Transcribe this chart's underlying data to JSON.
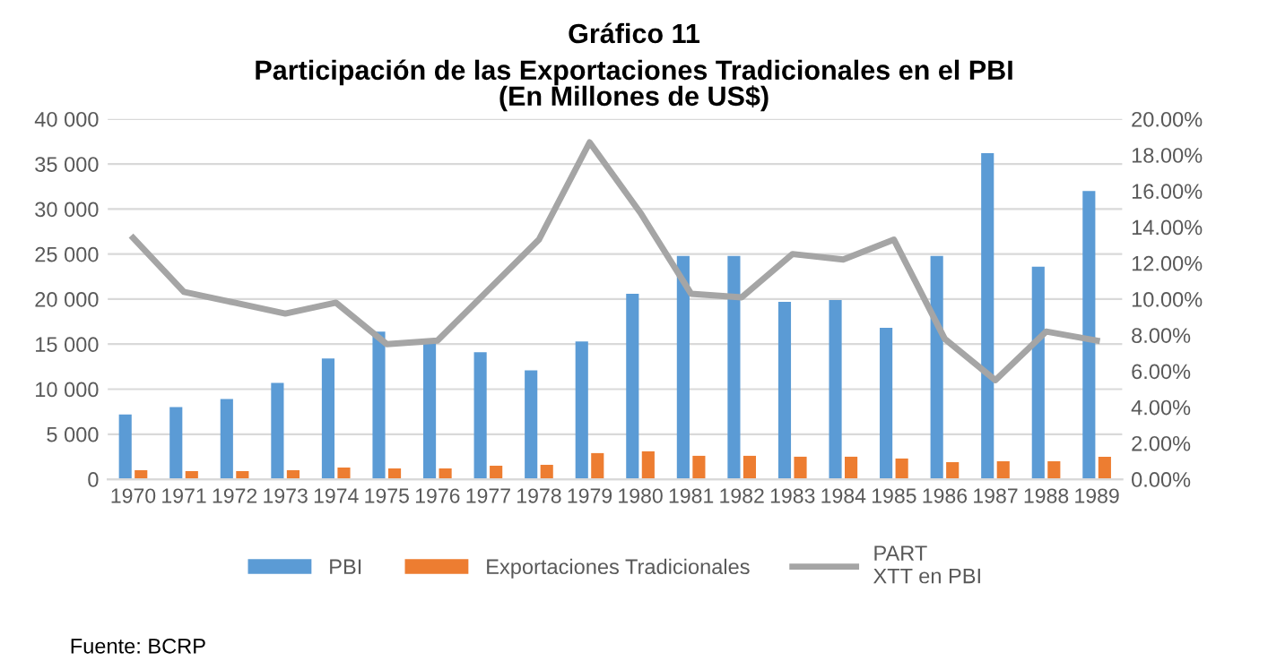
{
  "chart_data": {
    "type": "bar",
    "title": "Gráfico 11",
    "subtitle": "Participación de las Exportaciones Tradicionales en el PBI\n(En Millones de US$)",
    "categories": [
      "1970",
      "1971",
      "1972",
      "1973",
      "1974",
      "1975",
      "1976",
      "1977",
      "1978",
      "1979",
      "1980",
      "1981",
      "1982",
      "1983",
      "1984",
      "1985",
      "1986",
      "1987",
      "1988",
      "1989"
    ],
    "series": [
      {
        "name": "PBI",
        "color": "#5b9bd5",
        "values": [
          7200,
          8000,
          8900,
          10700,
          13400,
          16400,
          15500,
          14100,
          12100,
          15300,
          20600,
          24800,
          24800,
          19700,
          19900,
          16800,
          24800,
          36200,
          23600,
          32000
        ]
      },
      {
        "name": "Exportaciones Tradicionales",
        "color": "#ed7d31",
        "values": [
          1000,
          900,
          900,
          1000,
          1300,
          1200,
          1200,
          1500,
          1600,
          2900,
          3100,
          2600,
          2600,
          2500,
          2500,
          2300,
          1900,
          2000,
          2000,
          2500
        ]
      },
      {
        "name": "PART\nXTT en PBI",
        "type": "line",
        "axis": "y2",
        "color": "#a5a5a5",
        "values": [
          13.4,
          10.4,
          9.8,
          9.2,
          9.8,
          7.5,
          7.7,
          10.5,
          13.3,
          18.7,
          14.8,
          10.3,
          10.1,
          12.5,
          12.2,
          13.3,
          7.8,
          5.5,
          8.2,
          7.7
        ]
      }
    ],
    "ylim": [
      0,
      40000
    ],
    "yticks": [
      0,
      {
        "value": 5000,
        "label": "5 000"
      },
      {
        "value": 10000,
        "label": "10 000"
      },
      {
        "value": 15000,
        "label": "15 000"
      },
      {
        "value": 20000,
        "label": "20 000"
      },
      {
        "value": 25000,
        "label": "25 000"
      },
      {
        "value": 30000,
        "label": "30 000"
      },
      {
        "value": 35000,
        "label": "35 000"
      },
      {
        "value": 40000,
        "label": "40 000"
      }
    ],
    "y2lim": [
      0,
      20
    ],
    "y2ticks": [
      {
        "value": 0,
        "label": "0.00%"
      },
      {
        "value": 2,
        "label": "2.00%"
      },
      {
        "value": 4,
        "label": "4.00%"
      },
      {
        "value": 6,
        "label": "6.00%"
      },
      {
        "value": 8,
        "label": "8.00%"
      },
      {
        "value": 10,
        "label": "10.00%"
      },
      {
        "value": 12,
        "label": "12.00%"
      },
      {
        "value": 14,
        "label": "14.00%"
      },
      {
        "value": 16,
        "label": "16.00%"
      },
      {
        "value": 18,
        "label": "18.00%"
      },
      {
        "value": 20,
        "label": "20.00%"
      }
    ],
    "grid": "y",
    "legend": "bottom",
    "marker": "none",
    "line_style": "solid",
    "annotations": [
      "Fuente: BCRP"
    ]
  }
}
